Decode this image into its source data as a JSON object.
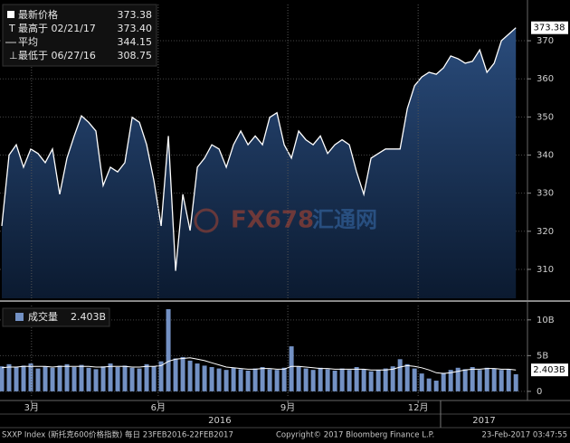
{
  "chart_data": [
    {
      "type": "area",
      "color": "#ffffff",
      "fill_top": "#2a4c7c",
      "fill_bottom": "#0b1a30",
      "xlim": [
        -0.25,
        72.6
      ],
      "ylim": [
        302.4,
        379.5
      ],
      "yticks": [
        310,
        320,
        330,
        340,
        350,
        360,
        370
      ],
      "grid": true,
      "legend": [
        {
          "label": "最新价格",
          "value": "373.38"
        },
        {
          "label": "最高于 02/21/17",
          "value": "373.40"
        },
        {
          "label": "平均",
          "value": "344.15"
        },
        {
          "label": "最低于 06/27/16",
          "value": "308.75"
        }
      ],
      "values": [
        321.4,
        340,
        342.7,
        336.8,
        341.6,
        340.4,
        338,
        341.6,
        329.7,
        339.2,
        345,
        350.3,
        348.6,
        346.3,
        332,
        336.8,
        335.6,
        338,
        349.9,
        348.6,
        342.7,
        333.3,
        321.4,
        345,
        309.6,
        329.7,
        320.2,
        336.8,
        339.2,
        342.7,
        341.6,
        336.8,
        342.7,
        346.3,
        342.7,
        345,
        342.7,
        349.9,
        351.1,
        342.7,
        339.2,
        346.3,
        344,
        342.7,
        345,
        340.4,
        342.7,
        344,
        342.7,
        335.6,
        329.7,
        339.2,
        340.4,
        341.6,
        341.6,
        341.6,
        352.2,
        358.2,
        360.5,
        361.7,
        361.2,
        362.9,
        366,
        365.3,
        364.1,
        364.6,
        367.6,
        361.7,
        364.1,
        370,
        371.7,
        373.4
      ]
    },
    {
      "type": "bar",
      "color": "#7391c4",
      "line_color": "#ffffff",
      "xlim": [
        -0.25,
        72.6
      ],
      "ylim": [
        -0.9,
        12
      ],
      "yticks": [
        0,
        {
          "value": 5,
          "label": "5B"
        },
        {
          "value": 10,
          "label": "10B"
        }
      ],
      "grid": true,
      "legend": {
        "label": "成交量",
        "value": "2.403B"
      },
      "xticks": [
        {
          "value": 4.1,
          "label": "3月"
        },
        {
          "value": 21.6,
          "label": "6月"
        },
        {
          "value": 39.5,
          "label": "9月"
        },
        {
          "value": 57.5,
          "label": "12月"
        }
      ],
      "year_ticks": [
        {
          "value": 30.1,
          "label": "2016"
        },
        {
          "value": 66.6,
          "label": "2017"
        }
      ],
      "year_boundary": 60.6,
      "values": [
        3.5,
        3.8,
        3.4,
        3.6,
        3.9,
        3.2,
        3.5,
        3.3,
        3.6,
        3.8,
        3.4,
        3.7,
        3.3,
        3.1,
        3.5,
        3.9,
        3.4,
        3.6,
        3.3,
        3.2,
        3.8,
        3.5,
        4.2,
        11.5,
        4.6,
        4.8,
        4.3,
        3.9,
        3.6,
        3.4,
        3.2,
        3.0,
        3.3,
        3.1,
        2.9,
        3.2,
        3.4,
        3.1,
        3.0,
        3.3,
        6.3,
        3.5,
        3.2,
        3.0,
        3.3,
        3.1,
        2.9,
        3.2,
        3.0,
        3.4,
        3.1,
        2.8,
        3.0,
        3.2,
        3.5,
        4.5,
        3.8,
        3.2,
        2.5,
        1.8,
        1.5,
        2.6,
        3.0,
        3.3,
        3.1,
        3.4,
        3.0,
        3.3,
        3.2,
        3.0,
        3.1,
        2.4
      ],
      "moving_average": [
        3.3,
        3.4,
        3.4,
        3.5,
        3.5,
        3.5,
        3.5,
        3.4,
        3.5,
        3.5,
        3.5,
        3.5,
        3.5,
        3.4,
        3.4,
        3.5,
        3.5,
        3.5,
        3.4,
        3.4,
        3.5,
        3.5,
        3.6,
        4.2,
        4.5,
        4.6,
        4.7,
        4.5,
        4.3,
        4.0,
        3.7,
        3.4,
        3.3,
        3.2,
        3.1,
        3.1,
        3.2,
        3.2,
        3.1,
        3.1,
        3.5,
        3.5,
        3.4,
        3.3,
        3.2,
        3.2,
        3.1,
        3.1,
        3.1,
        3.1,
        3.1,
        3.0,
        3.0,
        3.0,
        3.1,
        3.4,
        3.6,
        3.5,
        3.3,
        3.0,
        2.6,
        2.5,
        2.6,
        2.8,
        3.0,
        3.1,
        3.1,
        3.2,
        3.2,
        3.1,
        3.1,
        3.0
      ]
    }
  ],
  "watermark": "FX678",
  "watermark_cn": "汇通网",
  "footer": {
    "left": "SXXP Index (斯托克600价格指数)  每日  23FEB2016-22FEB2017",
    "center": "Copyright© 2017 Bloomberg Finance L.P.",
    "right": "23-Feb-2017 03:47:55"
  }
}
